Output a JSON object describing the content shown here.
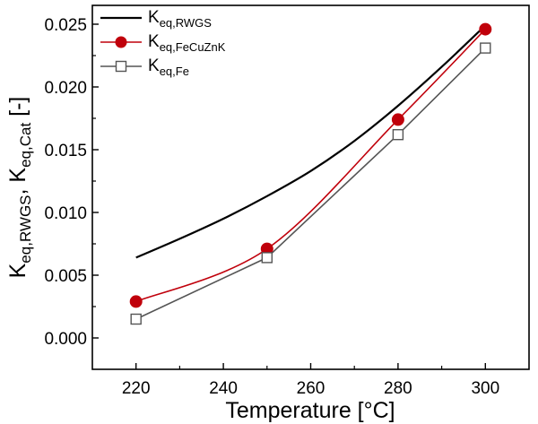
{
  "chart_data": {
    "type": "line",
    "xlabel": "Temperature [°C]",
    "ylabel_main": "K",
    "ylabel_sub1": "eq,RWGS",
    "ylabel_sep": ", K",
    "ylabel_sub2": "eq,Cat",
    "ylabel_unit": " [-]",
    "xlim": [
      210,
      310
    ],
    "ylim": [
      -0.0025,
      0.0265
    ],
    "x_ticks": [
      220,
      240,
      260,
      280,
      300
    ],
    "y_ticks": [
      0.0,
      0.005,
      0.01,
      0.015,
      0.02,
      0.025
    ],
    "grid": false,
    "legend_position": "top-left",
    "series": [
      {
        "name_main": "K",
        "name_sub": "eq,RWGS",
        "color": "#000000",
        "marker": "none",
        "style": "smooth",
        "x": [
          220,
          230,
          240,
          250,
          260,
          270,
          280,
          290,
          300
        ],
        "y": [
          0.0064,
          0.0079,
          0.0095,
          0.0113,
          0.0133,
          0.0157,
          0.0185,
          0.0216,
          0.0249
        ]
      },
      {
        "name_main": "K",
        "name_sub": "eq,FeCuZnK",
        "color": "#c0000b",
        "marker": "filled-circle",
        "style": "smooth",
        "x": [
          220,
          250,
          280,
          300
        ],
        "y": [
          0.0029,
          0.0071,
          0.0174,
          0.0246
        ]
      },
      {
        "name_main": "K",
        "name_sub": "eq,Fe",
        "color": "#555555",
        "marker": "open-square",
        "style": "straight",
        "x": [
          220,
          250,
          280,
          300
        ],
        "y": [
          0.0015,
          0.0064,
          0.0162,
          0.0231
        ]
      }
    ]
  }
}
